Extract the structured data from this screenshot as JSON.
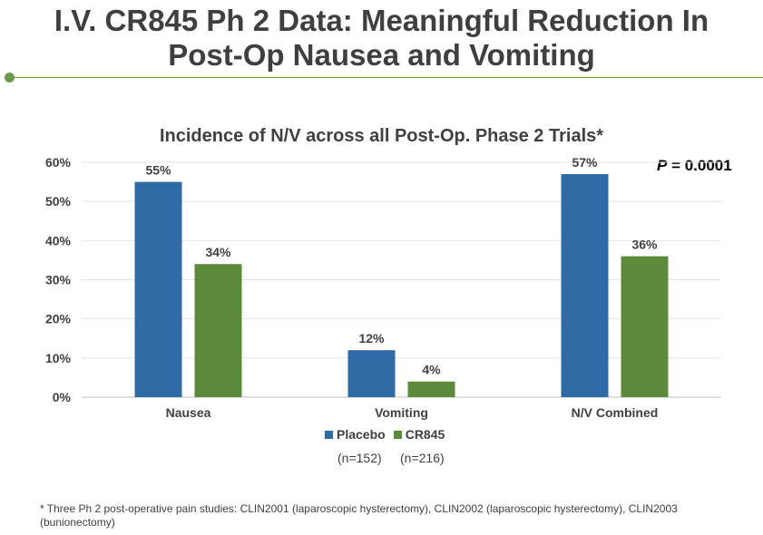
{
  "slide": {
    "title_line1": "I.V. CR845 Ph 2 Data: Meaningful Reduction In",
    "title_line2": "Post-Op Nausea and Vomiting",
    "accent_color": "#6a9a4a"
  },
  "p_value": {
    "prefix": "P",
    "value": " = 0.0001"
  },
  "legend": {
    "placebo_name": "Placebo",
    "placebo_n": "(n=152)",
    "cr845_name": "CR845",
    "cr845_n": "(n=216)"
  },
  "footnote": "* Three Ph 2 post-operative pain studies: CLIN2001 (laparoscopic hysterectomy), CLIN2002 (laparoscopic hysterectomy), CLIN2003 (bunionectomy)",
  "chart_data": {
    "type": "bar",
    "title": "Incidence of N/V across all Post-Op. Phase 2 Trials*",
    "categories": [
      "Nausea",
      "Vomiting",
      "N/V Combined"
    ],
    "series": [
      {
        "name": "Placebo",
        "values": [
          55,
          12,
          57
        ],
        "labels": [
          "55%",
          "12%",
          "57%"
        ],
        "color": "#2e6aa3"
      },
      {
        "name": "CR845",
        "values": [
          34,
          4,
          36
        ],
        "labels": [
          "34%",
          "4%",
          "36%"
        ],
        "color": "#5b8a3a"
      }
    ],
    "ylim": [
      0,
      60
    ],
    "yticks": [
      0,
      10,
      20,
      30,
      40,
      50,
      60
    ],
    "ytick_labels": [
      "0%",
      "10%",
      "20%",
      "30%",
      "40%",
      "50%",
      "60%"
    ],
    "grid": true,
    "legend_position": "bottom"
  }
}
